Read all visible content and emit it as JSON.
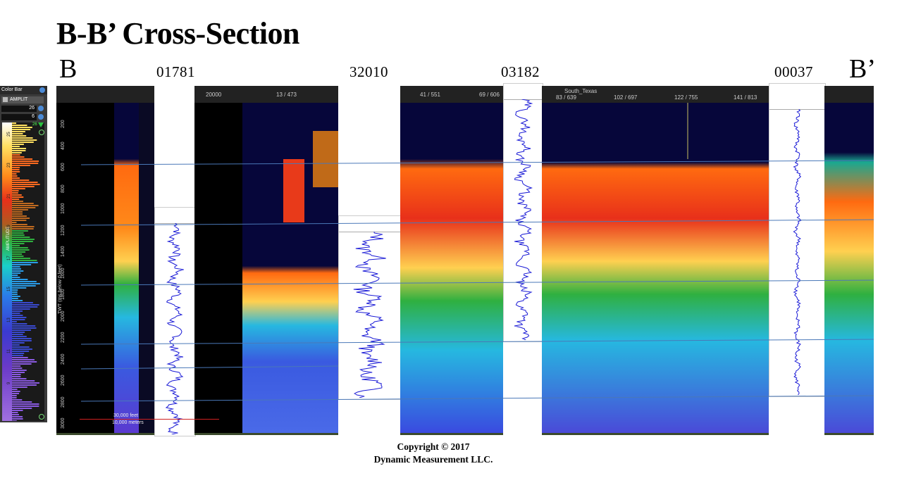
{
  "title": "B-B’ Cross-Section",
  "left_end": "B",
  "right_end": "B’",
  "wells": [
    "01781",
    "32010",
    "03182",
    "00037"
  ],
  "colorbar": {
    "header": "Color Bar",
    "attribute": "AMPLIT",
    "max_value": "26",
    "min_value": "6",
    "top_tick": "26",
    "axis_label": "AMPLITUDE",
    "ticks": [
      "25",
      "23",
      "21",
      "19",
      "17",
      "15",
      "13",
      "11",
      "9"
    ]
  },
  "depth_axis": {
    "label": "TWT (ms below 0 feet)",
    "ticks": [
      "200",
      "400",
      "600",
      "800",
      "1000",
      "1200",
      "1400",
      "1600",
      "1800",
      "2000",
      "2200",
      "2400",
      "2600",
      "2800",
      "3000"
    ]
  },
  "panel_headers": {
    "p2_left": "20000",
    "p2_mid": "13 / 473",
    "p3_a": "41 / 551",
    "p3_b": "69 / 606",
    "p4_region": "South_Texas",
    "p4_a": "83 / 639",
    "p4_b": "102 / 697",
    "p4_c": "122 / 755",
    "p4_d": "141 / 813"
  },
  "scale_bar": {
    "feet": "30,000 feet",
    "meters": "10,000 meters"
  },
  "copyright": {
    "line1": "Copyright  © 2017",
    "line2": "Dynamic Measurement LLC."
  },
  "colors": {
    "panel_bg": "#0a0a24",
    "log_trace": "#1a1ad6",
    "correlation_line": "#4a78b8"
  }
}
